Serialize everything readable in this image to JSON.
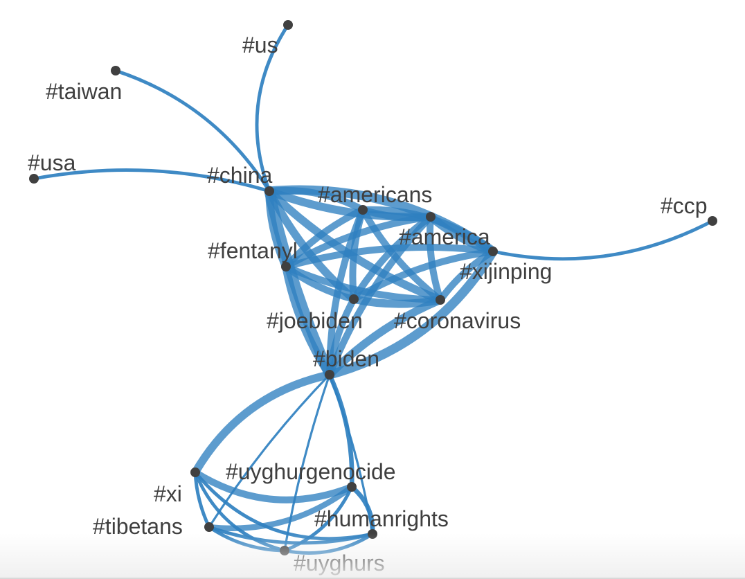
{
  "network": {
    "colors": {
      "edge": "#2f80c0",
      "node": "#404040",
      "label": "#3f3f3f"
    },
    "nodes": [
      {
        "id": "us",
        "label": "#us"
      },
      {
        "id": "taiwan",
        "label": "#taiwan"
      },
      {
        "id": "usa",
        "label": "#usa"
      },
      {
        "id": "china",
        "label": "#china"
      },
      {
        "id": "americans",
        "label": "#americans"
      },
      {
        "id": "ccp",
        "label": "#ccp"
      },
      {
        "id": "america",
        "label": "#america"
      },
      {
        "id": "xijinping",
        "label": "#xijinping"
      },
      {
        "id": "fentanyl",
        "label": "#fentanyl"
      },
      {
        "id": "joebiden",
        "label": "#joebiden"
      },
      {
        "id": "coronavirus",
        "label": "#coronavirus"
      },
      {
        "id": "biden",
        "label": "#biden"
      },
      {
        "id": "uyghurgenocide",
        "label": "#uyghurgenocide"
      },
      {
        "id": "xi",
        "label": "#xi"
      },
      {
        "id": "humanrights",
        "label": "#humanrights"
      },
      {
        "id": "tibetans",
        "label": "#tibetans"
      },
      {
        "id": "uyghurs",
        "label": "#uyghurs"
      }
    ],
    "edges": [
      {
        "source": "china",
        "target": "us",
        "weight": 2
      },
      {
        "source": "china",
        "target": "taiwan",
        "weight": 2
      },
      {
        "source": "china",
        "target": "usa",
        "weight": 2
      },
      {
        "source": "xijinping",
        "target": "ccp",
        "weight": 2
      },
      {
        "source": "china",
        "target": "americans",
        "weight": 5
      },
      {
        "source": "china",
        "target": "america",
        "weight": 6
      },
      {
        "source": "china",
        "target": "xijinping",
        "weight": 7
      },
      {
        "source": "china",
        "target": "fentanyl",
        "weight": 6
      },
      {
        "source": "china",
        "target": "joebiden",
        "weight": 6
      },
      {
        "source": "china",
        "target": "coronavirus",
        "weight": 6
      },
      {
        "source": "china",
        "target": "biden",
        "weight": 8
      },
      {
        "source": "americans",
        "target": "america",
        "weight": 5
      },
      {
        "source": "americans",
        "target": "xijinping",
        "weight": 5
      },
      {
        "source": "americans",
        "target": "fentanyl",
        "weight": 5
      },
      {
        "source": "americans",
        "target": "joebiden",
        "weight": 5
      },
      {
        "source": "americans",
        "target": "coronavirus",
        "weight": 5
      },
      {
        "source": "americans",
        "target": "biden",
        "weight": 5
      },
      {
        "source": "america",
        "target": "xijinping",
        "weight": 6
      },
      {
        "source": "america",
        "target": "fentanyl",
        "weight": 5
      },
      {
        "source": "america",
        "target": "joebiden",
        "weight": 5
      },
      {
        "source": "america",
        "target": "coronavirus",
        "weight": 5
      },
      {
        "source": "america",
        "target": "biden",
        "weight": 5
      },
      {
        "source": "xijinping",
        "target": "fentanyl",
        "weight": 5
      },
      {
        "source": "xijinping",
        "target": "joebiden",
        "weight": 5
      },
      {
        "source": "xijinping",
        "target": "coronavirus",
        "weight": 5
      },
      {
        "source": "xijinping",
        "target": "biden",
        "weight": 7
      },
      {
        "source": "fentanyl",
        "target": "joebiden",
        "weight": 5
      },
      {
        "source": "fentanyl",
        "target": "coronavirus",
        "weight": 5
      },
      {
        "source": "fentanyl",
        "target": "biden",
        "weight": 6
      },
      {
        "source": "joebiden",
        "target": "coronavirus",
        "weight": 6
      },
      {
        "source": "joebiden",
        "target": "biden",
        "weight": 5
      },
      {
        "source": "coronavirus",
        "target": "biden",
        "weight": 6
      },
      {
        "source": "biden",
        "target": "xi",
        "weight": 6
      },
      {
        "source": "biden",
        "target": "uyghurgenocide",
        "weight": 3
      },
      {
        "source": "biden",
        "target": "tibetans",
        "weight": 1
      },
      {
        "source": "biden",
        "target": "uyghurs",
        "weight": 1
      },
      {
        "source": "biden",
        "target": "humanrights",
        "weight": 1
      },
      {
        "source": "xi",
        "target": "uyghurgenocide",
        "weight": 5
      },
      {
        "source": "xi",
        "target": "tibetans",
        "weight": 2
      },
      {
        "source": "xi",
        "target": "uyghurs",
        "weight": 2
      },
      {
        "source": "xi",
        "target": "humanrights",
        "weight": 2
      },
      {
        "source": "tibetans",
        "target": "uyghurgenocide",
        "weight": 4
      },
      {
        "source": "tibetans",
        "target": "humanrights",
        "weight": 2
      },
      {
        "source": "tibetans",
        "target": "uyghurs",
        "weight": 2
      },
      {
        "source": "uyghurgenocide",
        "target": "humanrights",
        "weight": 3
      },
      {
        "source": "uyghurgenocide",
        "target": "uyghurs",
        "weight": 2
      },
      {
        "source": "uyghurs",
        "target": "humanrights",
        "weight": 2
      }
    ]
  }
}
